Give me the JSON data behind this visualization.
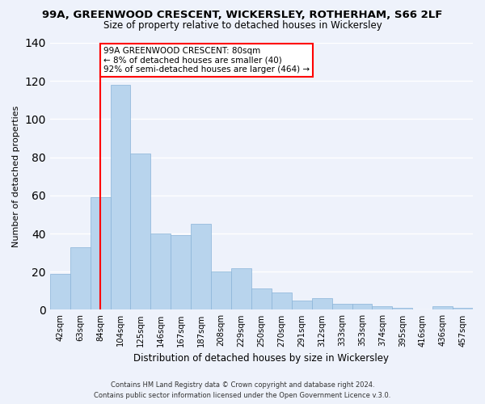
{
  "title": "99A, GREENWOOD CRESCENT, WICKERSLEY, ROTHERHAM, S66 2LF",
  "subtitle": "Size of property relative to detached houses in Wickersley",
  "xlabel": "Distribution of detached houses by size in Wickersley",
  "ylabel": "Number of detached properties",
  "bar_color": "#b8d4ed",
  "bar_edge_color": "#8ab4d8",
  "background_color": "#eef2fb",
  "grid_color": "white",
  "categories": [
    "42sqm",
    "63sqm",
    "84sqm",
    "104sqm",
    "125sqm",
    "146sqm",
    "167sqm",
    "187sqm",
    "208sqm",
    "229sqm",
    "250sqm",
    "270sqm",
    "291sqm",
    "312sqm",
    "333sqm",
    "353sqm",
    "374sqm",
    "395sqm",
    "416sqm",
    "436sqm",
    "457sqm"
  ],
  "values": [
    19,
    33,
    59,
    118,
    82,
    40,
    39,
    45,
    20,
    22,
    11,
    9,
    5,
    6,
    3,
    3,
    2,
    1,
    0,
    2,
    1
  ],
  "ylim": [
    0,
    140
  ],
  "yticks": [
    0,
    20,
    40,
    60,
    80,
    100,
    120,
    140
  ],
  "marker_x": "84sqm",
  "marker_color": "red",
  "annotation_title": "99A GREENWOOD CRESCENT: 80sqm",
  "annotation_line1": "← 8% of detached houses are smaller (40)",
  "annotation_line2": "92% of semi-detached houses are larger (464) →",
  "footer_line1": "Contains HM Land Registry data © Crown copyright and database right 2024.",
  "footer_line2": "Contains public sector information licensed under the Open Government Licence v.3.0."
}
